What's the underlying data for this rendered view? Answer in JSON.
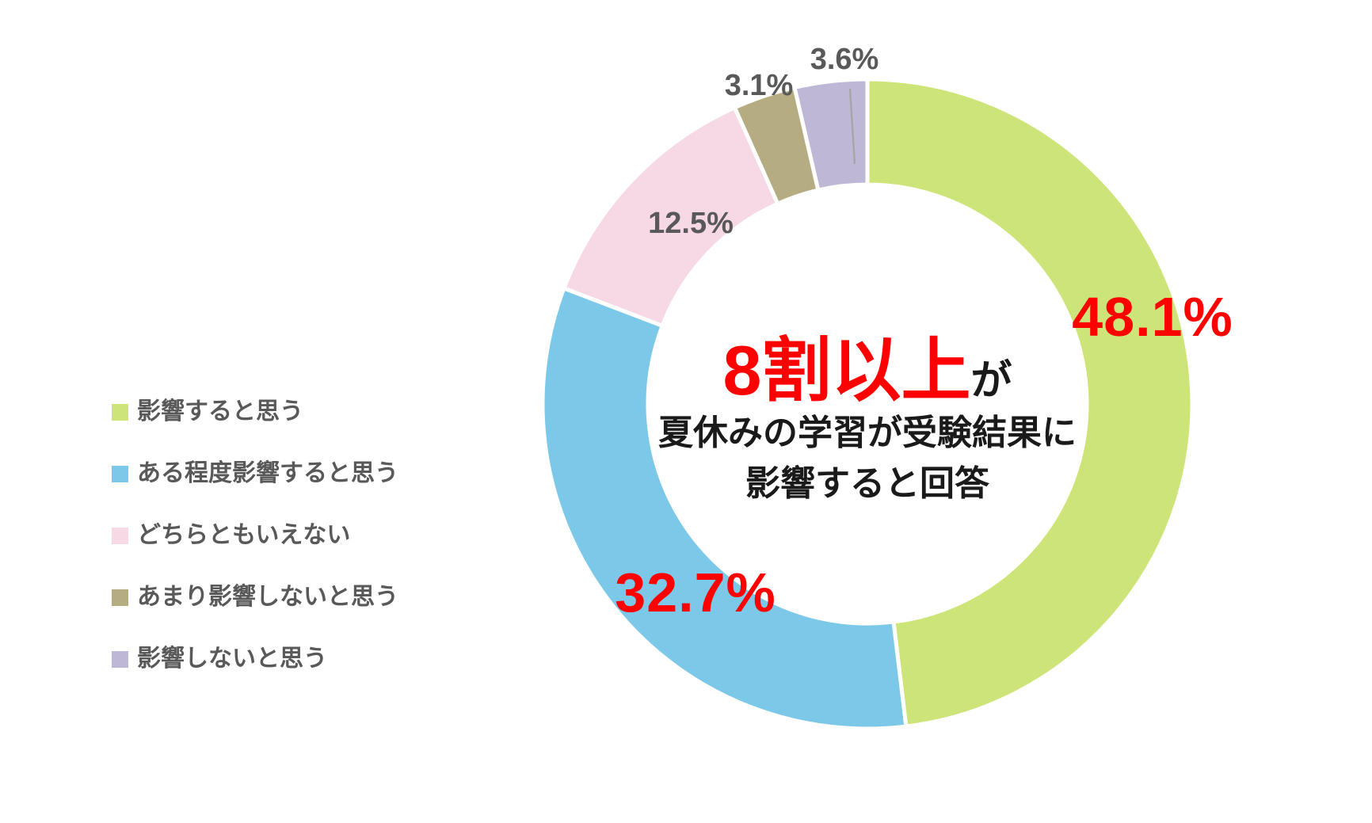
{
  "chart_data": {
    "type": "pie",
    "subtype": "donut",
    "title": "",
    "categories": [
      "影響すると思う",
      "ある程度影響すると思う",
      "どちらともいえない",
      "あまり影響しないと思う",
      "影響しないと思う"
    ],
    "values": [
      48.1,
      32.7,
      12.5,
      3.1,
      3.6
    ],
    "unit": "%",
    "labels": [
      "48.1%",
      "32.7%",
      "12.5%",
      "3.1%",
      "3.6%"
    ],
    "colors": [
      "#cde578",
      "#7cc8e8",
      "#f7d8e5",
      "#b5ac82",
      "#beb8d6"
    ],
    "legend_position": "left",
    "start_angle_deg": 0,
    "clockwise": true,
    "center_annotation": "8割以上が夏休みの学習が受験結果に影響すると回答"
  },
  "center_text": {
    "headline": "8割以上",
    "headline_suffix": "が",
    "line2": "夏休みの学習が受験結果に",
    "line3": "影響すると回答"
  },
  "colors": {
    "emphasis_red": "#ff0000",
    "label_gray": "#595959",
    "text_black": "#1a1a1a",
    "leader_line_gray": "#a6a6a6",
    "background": "#ffffff"
  }
}
